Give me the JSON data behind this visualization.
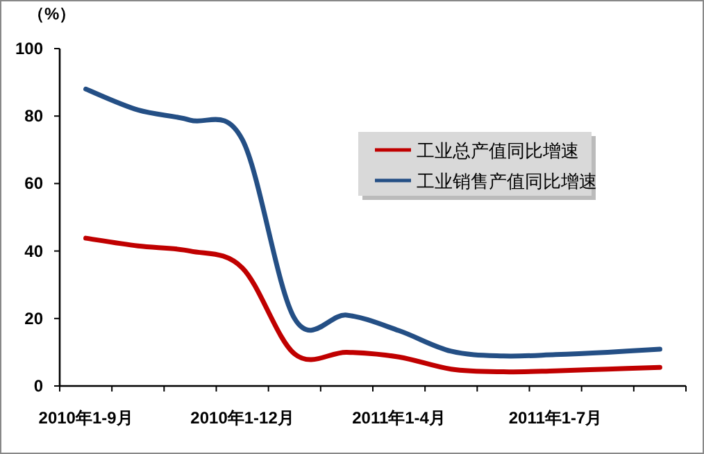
{
  "chart_data": {
    "type": "line",
    "ylabel": "（%）",
    "categories": [
      "2010年1-9月",
      null,
      null,
      "2010年1-12月",
      null,
      null,
      "2011年1-4月",
      null,
      null,
      "2011年1-7月",
      null,
      null
    ],
    "series": [
      {
        "name": "工业总产值同比增速",
        "color": "#c00000",
        "values": [
          43.8,
          41.5,
          40,
          35,
          9.5,
          10,
          8.6,
          5,
          4.2,
          4.5,
          5,
          5.5
        ]
      },
      {
        "name": "工业销售产值同比增速",
        "color": "#244f85",
        "values": [
          88,
          81.8,
          78.8,
          73,
          20,
          21,
          16.4,
          10.3,
          8.9,
          9.3,
          10,
          10.9
        ]
      }
    ],
    "ylim": [
      0,
      100
    ],
    "yticks": [
      0,
      20,
      40,
      60,
      80,
      100
    ],
    "grid": false,
    "legend": "top right",
    "line_style": "solid",
    "marker": "none"
  }
}
